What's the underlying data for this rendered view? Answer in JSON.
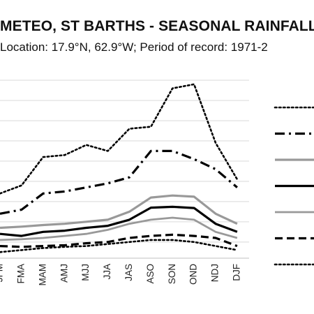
{
  "chart_data": {
    "type": "line",
    "title": "METEO, ST BARTHS - SEASONAL RAINFALL",
    "subtitle": "Location: 17.9°N, 62.9°W; Period of record: 1971-2",
    "categories": [
      "JFM",
      "FMA",
      "MAM",
      "AMJ",
      "MJJ",
      "JJA",
      "JAS",
      "ASO",
      "SON",
      "OND",
      "NDJ",
      "DJF"
    ],
    "series": [
      {
        "style": "dotted-black",
        "values": [
          120,
          140,
          210,
          215,
          240,
          225,
          280,
          285,
          380,
          390,
          245,
          155
        ]
      },
      {
        "style": "dashdot-black-thick",
        "values": [
          70,
          80,
          120,
          125,
          135,
          145,
          160,
          225,
          225,
          205,
          180,
          135
        ]
      },
      {
        "style": "solid-gray-thick",
        "values": [
          35,
          38,
          42,
          45,
          50,
          55,
          75,
          110,
          115,
          112,
          70,
          45
        ]
      },
      {
        "style": "solid-black-thick",
        "values": [
          20,
          15,
          25,
          28,
          35,
          40,
          55,
          85,
          87,
          84,
          45,
          25
        ]
      },
      {
        "style": "solid-gray",
        "values": [
          5,
          7,
          10,
          15,
          20,
          30,
          45,
          55,
          60,
          55,
          25,
          10
        ]
      },
      {
        "style": "dashed-black-thick",
        "values": [
          -10,
          -12,
          -10,
          -8,
          -3,
          0,
          10,
          15,
          18,
          15,
          10,
          -10
        ]
      },
      {
        "style": "dotted-black-small",
        "values": [
          -25,
          -20,
          -15,
          -12,
          -10,
          -5,
          0,
          5,
          5,
          0,
          -10,
          -20
        ]
      }
    ],
    "colors": {
      "black": "#000000",
      "gray": "#999999",
      "grid": "#d9d9d9",
      "axis": "#bfbfbf"
    },
    "ylim": [
      -40,
      400
    ],
    "grid": true,
    "legend_position": "right",
    "xlabel": "",
    "ylabel": ""
  }
}
